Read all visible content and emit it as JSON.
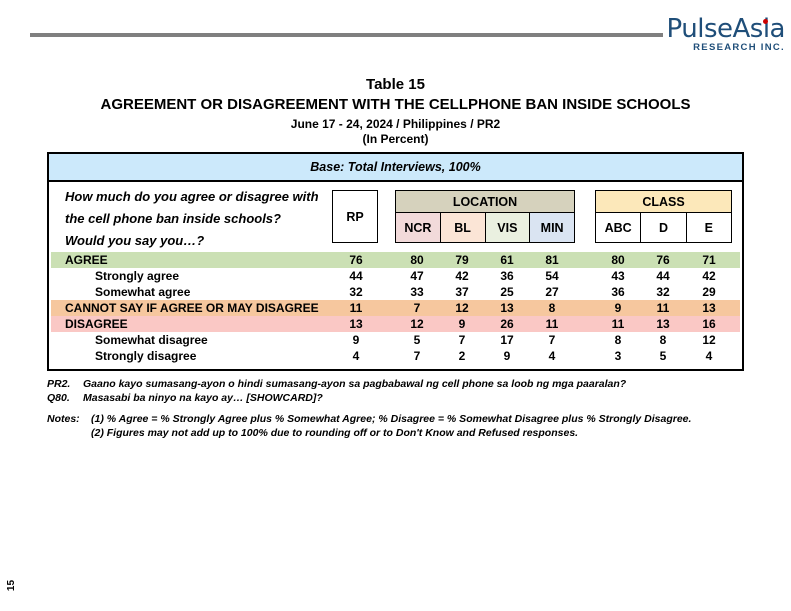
{
  "logo": {
    "name": "PulseAsia",
    "subtitle": "RESEARCH INC.",
    "brand_color": "#1f4e79",
    "dot_color": "#cc0000"
  },
  "title": {
    "table_no": "Table 15",
    "main": "AGREEMENT OR DISAGREEMENT WITH THE CELLPHONE BAN INSIDE SCHOOLS",
    "date_line": "June 17 - 24, 2024 / Philippines / PR2",
    "unit_line": "(In Percent)"
  },
  "table": {
    "base_note": "Base: Total Interviews, 100%",
    "question": {
      "line1": "How much do you agree or disagree with",
      "line2": "the cell phone ban inside schools?",
      "line3": "Would you say you…?"
    },
    "column_groups": {
      "rp": "RP",
      "location": {
        "label": "LOCATION",
        "columns": [
          "NCR",
          "BL",
          "VIS",
          "MIN"
        ]
      },
      "class": {
        "label": "CLASS",
        "columns": [
          "ABC",
          "D",
          "E"
        ]
      }
    },
    "columns_order": [
      "RP",
      "NCR",
      "BL",
      "VIS",
      "MIN",
      "ABC",
      "D",
      "E"
    ],
    "rows": [
      {
        "label": "AGREE",
        "level": "category",
        "highlight": "green",
        "values": [
          76,
          80,
          79,
          61,
          81,
          80,
          76,
          71
        ]
      },
      {
        "label": "Strongly agree",
        "level": "sub",
        "highlight": "none",
        "values": [
          44,
          47,
          42,
          36,
          54,
          43,
          44,
          42
        ]
      },
      {
        "label": "Somewhat agree",
        "level": "sub",
        "highlight": "none",
        "values": [
          32,
          33,
          37,
          25,
          27,
          36,
          32,
          29
        ]
      },
      {
        "label": "CANNOT SAY IF AGREE OR MAY DISAGREE",
        "level": "category",
        "highlight": "orange",
        "values": [
          11,
          7,
          12,
          13,
          8,
          9,
          11,
          13
        ]
      },
      {
        "label": "DISAGREE",
        "level": "category",
        "highlight": "pink",
        "values": [
          13,
          12,
          9,
          26,
          11,
          11,
          13,
          16
        ]
      },
      {
        "label": "Somewhat disagree",
        "level": "sub",
        "highlight": "none",
        "values": [
          9,
          5,
          7,
          17,
          7,
          8,
          8,
          12
        ]
      },
      {
        "label": "Strongly disagree",
        "level": "sub",
        "highlight": "none",
        "values": [
          4,
          7,
          2,
          9,
          4,
          3,
          5,
          4
        ]
      }
    ]
  },
  "footnotes": {
    "pr2_label": "PR2.",
    "pr2_text": "Gaano kayo sumasang-ayon o hindi sumasang-ayon sa pagbabawal ng cell phone sa loob ng mga paaralan?",
    "q80_label": "Q80.",
    "q80_text": "Masasabi ba ninyo na kayo ay… [SHOWCARD]?",
    "notes_label": "Notes:",
    "note1": "(1) % Agree = % Strongly Agree plus % Somewhat Agree; % Disagree = % Somewhat Disagree plus % Strongly Disagree.",
    "note2": "(2) Figures may not add up to 100% due to rounding off or to Don't Know and Refused responses."
  },
  "page_number": "15",
  "colors": {
    "rule": "#7f7f7f",
    "base_banner": "#cce9fb",
    "location_header": "#d6d2bd",
    "ncr_cell": "#f2dada",
    "bl_cell": "#fbe5d6",
    "vis_cell": "#eaf0e0",
    "min_cell": "#dae4f2",
    "class_header": "#fce8ba",
    "agree_row": "#cbe0b4",
    "cannot_say_row": "#f6c79e",
    "disagree_row": "#fac8c5"
  }
}
